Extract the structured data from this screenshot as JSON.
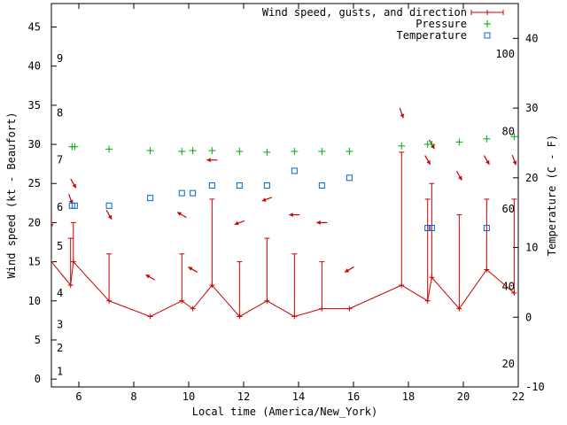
{
  "chart_data": {
    "type": "line",
    "title": "",
    "xlabel": "Local time (America/New_York)",
    "ylabel_left": "Wind speed (kt - Beaufort)",
    "ylabel_right": "Temperature (C - F)",
    "xlim": [
      5,
      22
    ],
    "ylim_left": [
      -1,
      48
    ],
    "ylim_right": [
      -10,
      45
    ],
    "x_ticks": [
      6,
      8,
      10,
      12,
      14,
      16,
      18,
      20,
      22
    ],
    "y_left_ticks": [
      0,
      5,
      10,
      15,
      20,
      25,
      30,
      35,
      40,
      45
    ],
    "y_right_ticks": [
      -10,
      0,
      10,
      20,
      30,
      40
    ],
    "beaufort_labels": [
      {
        "label": "1",
        "value": 1
      },
      {
        "label": "2",
        "value": 4
      },
      {
        "label": "3",
        "value": 7
      },
      {
        "label": "4",
        "value": 11
      },
      {
        "label": "5",
        "value": 17
      },
      {
        "label": "6",
        "value": 22
      },
      {
        "label": "7",
        "value": 28
      },
      {
        "label": "8",
        "value": 34
      },
      {
        "label": "9",
        "value": 41
      }
    ],
    "fahrenheit_labels": [
      {
        "label": "20",
        "value": -6.67
      },
      {
        "label": "40",
        "value": 4.44
      },
      {
        "label": "60",
        "value": 15.56
      },
      {
        "label": "80",
        "value": 26.67
      },
      {
        "label": "100",
        "value": 37.78
      }
    ],
    "legend": [
      {
        "label": "Wind speed, gusts, and direction",
        "color": "#cc0000",
        "marker": "errorbar"
      },
      {
        "label": "Pressure",
        "color": "#00aa00",
        "marker": "plus"
      },
      {
        "label": "Temperature",
        "color": "#0066cc",
        "marker": "square"
      }
    ],
    "series": [
      {
        "name": "Wind speed",
        "color": "#cc0000",
        "points": [
          {
            "x": 5.0,
            "y": 15,
            "gust": 15,
            "dir": 0
          },
          {
            "x": 5.7,
            "y": 12,
            "gust": 18,
            "dir": 20
          },
          {
            "x": 5.8,
            "y": 15,
            "gust": 20,
            "dir": 30
          },
          {
            "x": 7.1,
            "y": 10,
            "gust": 16,
            "dir": 30
          },
          {
            "x": 8.6,
            "y": 8,
            "gust": 8,
            "dir": 240
          },
          {
            "x": 9.75,
            "y": 10,
            "gust": 16,
            "dir": 240
          },
          {
            "x": 10.15,
            "y": 9,
            "gust": 9,
            "dir": 240
          },
          {
            "x": 10.85,
            "y": 12,
            "gust": 23,
            "dir": 270
          },
          {
            "x": 11.85,
            "y": 8,
            "gust": 15,
            "dir": 290
          },
          {
            "x": 12.85,
            "y": 10,
            "gust": 18,
            "dir": 290
          },
          {
            "x": 13.85,
            "y": 8,
            "gust": 16,
            "dir": 270
          },
          {
            "x": 14.85,
            "y": 9,
            "gust": 15,
            "dir": 270
          },
          {
            "x": 15.85,
            "y": 9,
            "gust": 9,
            "dir": 300
          },
          {
            "x": 17.75,
            "y": 12,
            "gust": 29,
            "dir": 20
          },
          {
            "x": 18.7,
            "y": 10,
            "gust": 23,
            "dir": 30
          },
          {
            "x": 18.85,
            "y": 13,
            "gust": 25,
            "dir": 30
          },
          {
            "x": 19.85,
            "y": 9,
            "gust": 21,
            "dir": 30
          },
          {
            "x": 20.85,
            "y": 14,
            "gust": 23,
            "dir": 30
          },
          {
            "x": 21.85,
            "y": 11,
            "gust": 23,
            "dir": 20
          }
        ]
      },
      {
        "name": "Pressure",
        "color": "#00aa00",
        "points": [
          {
            "x": 5.75,
            "y": 29.7
          },
          {
            "x": 5.85,
            "y": 29.7
          },
          {
            "x": 7.1,
            "y": 29.4
          },
          {
            "x": 8.6,
            "y": 29.2
          },
          {
            "x": 9.75,
            "y": 29.1
          },
          {
            "x": 10.15,
            "y": 29.2
          },
          {
            "x": 10.85,
            "y": 29.2
          },
          {
            "x": 11.85,
            "y": 29.1
          },
          {
            "x": 12.85,
            "y": 29.0
          },
          {
            "x": 13.85,
            "y": 29.1
          },
          {
            "x": 14.85,
            "y": 29.1
          },
          {
            "x": 15.85,
            "y": 29.1
          },
          {
            "x": 17.75,
            "y": 29.8
          },
          {
            "x": 18.7,
            "y": 30.0
          },
          {
            "x": 18.85,
            "y": 30.0
          },
          {
            "x": 19.85,
            "y": 30.3
          },
          {
            "x": 20.85,
            "y": 30.7
          },
          {
            "x": 21.85,
            "y": 31.0
          }
        ]
      },
      {
        "name": "Temperature",
        "color": "#0066cc",
        "points": [
          {
            "x": 5.75,
            "y": 16.0
          },
          {
            "x": 5.85,
            "y": 16.0
          },
          {
            "x": 7.1,
            "y": 16.0
          },
          {
            "x": 8.6,
            "y": 17.1
          },
          {
            "x": 9.75,
            "y": 17.8
          },
          {
            "x": 10.15,
            "y": 17.8
          },
          {
            "x": 10.85,
            "y": 18.9
          },
          {
            "x": 11.85,
            "y": 18.9
          },
          {
            "x": 12.85,
            "y": 18.9
          },
          {
            "x": 13.85,
            "y": 21.0
          },
          {
            "x": 14.85,
            "y": 18.9
          },
          {
            "x": 15.85,
            "y": 20.0
          },
          {
            "x": 18.7,
            "y": 12.8
          },
          {
            "x": 18.85,
            "y": 12.8
          },
          {
            "x": 20.85,
            "y": 12.8
          }
        ]
      }
    ]
  }
}
